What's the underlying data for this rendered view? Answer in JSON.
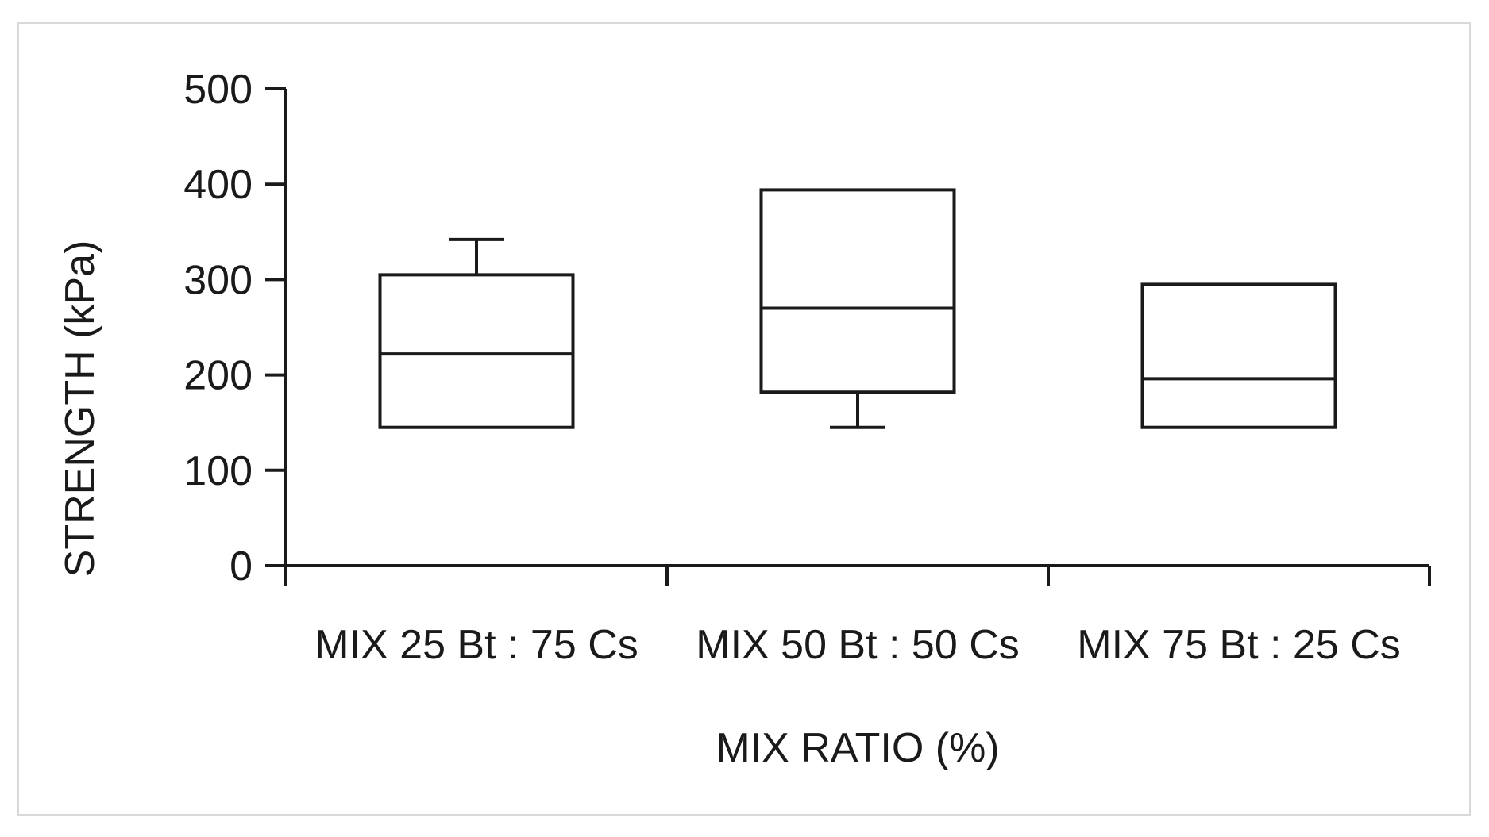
{
  "chart_data": {
    "type": "box",
    "title": "",
    "xlabel": "MIX RATIO (%)",
    "ylabel": "STRENGTH (kPa)",
    "ylim": [
      0,
      500
    ],
    "yticks": [
      0,
      100,
      200,
      300,
      400,
      500
    ],
    "grid": false,
    "legend": "none",
    "categories": [
      "MIX 25 Bt : 75 Cs",
      "MIX 50 Bt : 50 Cs",
      "MIX 75 Bt : 25 Cs"
    ],
    "boxes": [
      {
        "min": 145,
        "q1": 145,
        "median": 222,
        "q3": 305,
        "max": 342
      },
      {
        "min": 145,
        "q1": 182,
        "median": 270,
        "q3": 394,
        "max": 394
      },
      {
        "min": 145,
        "q1": 145,
        "median": 196,
        "q3": 295,
        "max": 295
      }
    ],
    "colors": {
      "stroke": "#1a1a1a",
      "fill": "#ffffff"
    }
  }
}
